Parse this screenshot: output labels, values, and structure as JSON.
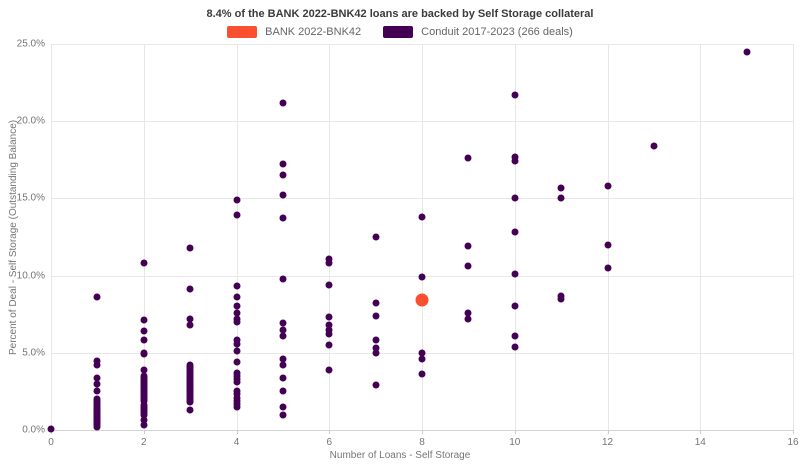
{
  "title": "8.4% of the BANK 2022-BNK42 loans are backed by Self Storage collateral",
  "legend": {
    "items": [
      {
        "label": "BANK 2022-BNK42",
        "color": "#fb4f2f"
      },
      {
        "label": "Conduit 2017-2023 (266 deals)",
        "color": "#440154"
      }
    ]
  },
  "chart_data": {
    "type": "scatter",
    "title": "8.4% of the BANK 2022-BNK42 loans are backed by Self Storage collateral",
    "xlabel": "Number of Loans - Self Storage",
    "ylabel": "Percent of Deal - Self Storage (Outstanding Balance)",
    "xlim": [
      0,
      16
    ],
    "ylim": [
      0,
      25
    ],
    "grid": "on",
    "legend_position": "top-center",
    "x_tick_values": [
      0,
      2,
      4,
      6,
      8,
      10,
      12,
      14,
      16
    ],
    "x_tick_labels": [
      "0",
      "2",
      "4",
      "6",
      "8",
      "10",
      "12",
      "14",
      "16"
    ],
    "y_tick_values": [
      0,
      5,
      10,
      15,
      20,
      25
    ],
    "y_tick_labels": [
      "0.0%",
      "5.0%",
      "10.0%",
      "15.0%",
      "20.0%",
      "25.0%"
    ],
    "series": [
      {
        "name": "BANK 2022-BNK42",
        "color": "#fb4f2f",
        "marker_diameter": 13,
        "points": [
          [
            8,
            8.4
          ]
        ]
      },
      {
        "name": "Conduit 2017-2023 (266 deals)",
        "color": "#440154",
        "marker_diameter": 7,
        "points": [
          [
            0,
            0.05
          ],
          [
            1,
            8.6
          ],
          [
            1,
            4.5
          ],
          [
            1,
            4.2
          ],
          [
            1,
            3.4
          ],
          [
            1,
            3.0
          ],
          [
            1,
            2.5
          ],
          [
            1,
            2.0
          ],
          [
            1,
            1.9
          ],
          [
            1,
            1.8
          ],
          [
            1,
            1.7
          ],
          [
            1,
            1.6
          ],
          [
            1,
            1.5
          ],
          [
            1,
            1.45
          ],
          [
            1,
            1.4
          ],
          [
            1,
            1.35
          ],
          [
            1,
            1.3
          ],
          [
            1,
            1.25
          ],
          [
            1,
            1.2
          ],
          [
            1,
            1.15
          ],
          [
            1,
            1.1
          ],
          [
            1,
            1.05
          ],
          [
            1,
            1.0
          ],
          [
            1,
            0.95
          ],
          [
            1,
            0.9
          ],
          [
            1,
            0.85
          ],
          [
            1,
            0.8
          ],
          [
            1,
            0.75
          ],
          [
            1,
            0.7
          ],
          [
            1,
            0.65
          ],
          [
            1,
            0.6
          ],
          [
            1,
            0.55
          ],
          [
            1,
            0.5
          ],
          [
            1,
            0.45
          ],
          [
            1,
            0.4
          ],
          [
            1,
            0.3
          ],
          [
            1,
            0.2
          ],
          [
            2,
            10.8
          ],
          [
            2,
            7.1
          ],
          [
            2,
            6.4
          ],
          [
            2,
            5.8
          ],
          [
            2,
            5.0
          ],
          [
            2,
            4.9
          ],
          [
            2,
            3.9
          ],
          [
            2,
            3.5
          ],
          [
            2,
            3.4
          ],
          [
            2,
            3.3
          ],
          [
            2,
            3.2
          ],
          [
            2,
            3.1
          ],
          [
            2,
            3.0
          ],
          [
            2,
            2.9
          ],
          [
            2,
            2.8
          ],
          [
            2,
            2.7
          ],
          [
            2,
            2.6
          ],
          [
            2,
            2.5
          ],
          [
            2,
            2.4
          ],
          [
            2,
            2.3
          ],
          [
            2,
            2.2
          ],
          [
            2,
            2.1
          ],
          [
            2,
            2.0
          ],
          [
            2,
            1.9
          ],
          [
            2,
            1.6
          ],
          [
            2,
            1.5
          ],
          [
            2,
            1.4
          ],
          [
            2,
            1.3
          ],
          [
            2,
            1.2
          ],
          [
            2,
            1.1
          ],
          [
            2,
            1.0
          ],
          [
            2,
            0.65
          ],
          [
            2,
            0.3
          ],
          [
            3,
            11.8
          ],
          [
            3,
            9.1
          ],
          [
            3,
            7.2
          ],
          [
            3,
            6.8
          ],
          [
            3,
            4.2
          ],
          [
            3,
            4.1
          ],
          [
            3,
            4.0
          ],
          [
            3,
            3.9
          ],
          [
            3,
            3.8
          ],
          [
            3,
            3.7
          ],
          [
            3,
            3.6
          ],
          [
            3,
            3.5
          ],
          [
            3,
            3.4
          ],
          [
            3,
            3.3
          ],
          [
            3,
            3.2
          ],
          [
            3,
            3.1
          ],
          [
            3,
            3.0
          ],
          [
            3,
            2.9
          ],
          [
            3,
            2.8
          ],
          [
            3,
            2.7
          ],
          [
            3,
            2.6
          ],
          [
            3,
            2.5
          ],
          [
            3,
            2.4
          ],
          [
            3,
            2.3
          ],
          [
            3,
            2.2
          ],
          [
            3,
            2.1
          ],
          [
            3,
            2.0
          ],
          [
            3,
            1.9
          ],
          [
            3,
            1.8
          ],
          [
            3,
            1.3
          ],
          [
            4,
            14.9
          ],
          [
            4,
            13.9
          ],
          [
            4,
            9.3
          ],
          [
            4,
            8.6
          ],
          [
            4,
            8.0
          ],
          [
            4,
            7.6
          ],
          [
            4,
            7.2
          ],
          [
            4,
            7.0
          ],
          [
            4,
            5.8
          ],
          [
            4,
            5.6
          ],
          [
            4,
            5.1
          ],
          [
            4,
            4.4
          ],
          [
            4,
            3.7
          ],
          [
            4,
            3.5
          ],
          [
            4,
            3.3
          ],
          [
            4,
            3.1
          ],
          [
            4,
            2.5
          ],
          [
            4,
            2.3
          ],
          [
            4,
            2.1
          ],
          [
            4,
            1.9
          ],
          [
            4,
            1.7
          ],
          [
            4,
            1.5
          ],
          [
            5,
            21.2
          ],
          [
            5,
            17.2
          ],
          [
            5,
            16.5
          ],
          [
            5,
            15.2
          ],
          [
            5,
            13.7
          ],
          [
            5,
            9.8
          ],
          [
            5,
            6.9
          ],
          [
            5,
            6.5
          ],
          [
            5,
            6.1
          ],
          [
            5,
            4.6
          ],
          [
            5,
            4.2
          ],
          [
            5,
            3.4
          ],
          [
            5,
            2.5
          ],
          [
            5,
            1.5
          ],
          [
            5,
            1.0
          ],
          [
            6,
            11.1
          ],
          [
            6,
            10.8
          ],
          [
            6,
            9.4
          ],
          [
            6,
            7.3
          ],
          [
            6,
            6.8
          ],
          [
            6,
            6.5
          ],
          [
            6,
            6.2
          ],
          [
            6,
            5.5
          ],
          [
            6,
            3.9
          ],
          [
            7,
            12.5
          ],
          [
            7,
            8.2
          ],
          [
            7,
            7.4
          ],
          [
            7,
            5.8
          ],
          [
            7,
            5.3
          ],
          [
            7,
            5.0
          ],
          [
            7,
            2.9
          ],
          [
            8,
            13.8
          ],
          [
            8,
            9.9
          ],
          [
            8,
            5.0
          ],
          [
            8,
            4.6
          ],
          [
            8,
            3.6
          ],
          [
            9,
            17.6
          ],
          [
            9,
            11.9
          ],
          [
            9,
            10.6
          ],
          [
            9,
            7.6
          ],
          [
            9,
            7.2
          ],
          [
            10,
            21.7
          ],
          [
            10,
            17.7
          ],
          [
            10,
            17.4
          ],
          [
            10,
            15.0
          ],
          [
            10,
            12.8
          ],
          [
            10,
            10.1
          ],
          [
            10,
            8.0
          ],
          [
            10,
            6.1
          ],
          [
            10,
            5.4
          ],
          [
            11,
            15.7
          ],
          [
            11,
            15.0
          ],
          [
            11,
            8.7
          ],
          [
            11,
            8.5
          ],
          [
            12,
            15.8
          ],
          [
            12,
            12.0
          ],
          [
            12,
            10.5
          ],
          [
            13,
            18.4
          ],
          [
            15,
            24.5
          ]
        ]
      }
    ]
  }
}
